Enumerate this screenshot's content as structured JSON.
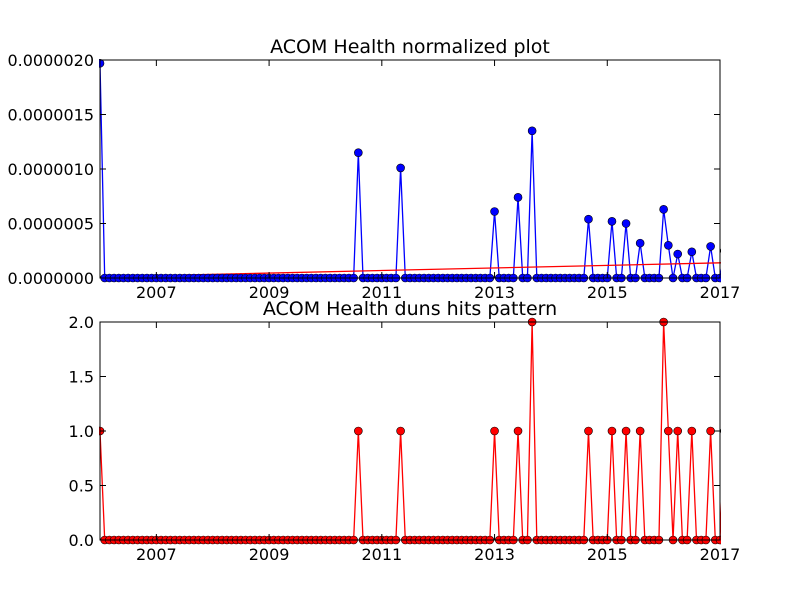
{
  "chart_data": [
    {
      "type": "line",
      "title": "ACOM Health normalized plot",
      "xlabel": "",
      "ylabel": "",
      "xlim": [
        "2006-01",
        "2017-01"
      ],
      "ylim": [
        0,
        2e-06
      ],
      "x_ticks": [
        "2007",
        "2009",
        "2011",
        "2013",
        "2015",
        "2017"
      ],
      "y_ticks": [
        "0.0000000",
        "0.0000005",
        "0.0000010",
        "0.0000015",
        "0.0000020"
      ],
      "grid": false,
      "colors": {
        "series": "#0000ff",
        "trend": "#ff0000"
      },
      "series": [
        {
          "points": [
            [
              "2006-01",
              1.97e-06
            ],
            [
              "2006-02",
              0
            ],
            [
              "2010-08",
              1.15e-06
            ],
            [
              "2011-05",
              1.01e-06
            ],
            [
              "2013-01",
              6.1e-07
            ],
            [
              "2013-06",
              7.4e-07
            ],
            [
              "2013-09",
              1.35e-06
            ],
            [
              "2014-09",
              5.4e-07
            ],
            [
              "2015-02",
              5.2e-07
            ],
            [
              "2015-05",
              5e-07
            ],
            [
              "2015-08",
              3.2e-07
            ],
            [
              "2016-01",
              6.3e-07
            ],
            [
              "2016-02",
              3e-07
            ],
            [
              "2016-04",
              2.2e-07
            ],
            [
              "2016-07",
              2.4e-07
            ],
            [
              "2016-11",
              2.9e-07
            ],
            [
              "2017-02",
              2.5e-07
            ]
          ]
        }
      ],
      "trend_line": [
        [
          "2006-01",
          1e-08
        ],
        [
          "2017-02",
          1.4e-07
        ]
      ]
    },
    {
      "type": "line",
      "title": "ACOM Health duns hits pattern",
      "xlabel": "",
      "ylabel": "",
      "xlim": [
        "2006-01",
        "2017-01"
      ],
      "ylim": [
        0,
        2
      ],
      "x_ticks": [
        "2007",
        "2009",
        "2011",
        "2013",
        "2015",
        "2017"
      ],
      "y_ticks": [
        "0.0",
        "0.5",
        "1.0",
        "1.5",
        "2.0"
      ],
      "grid": false,
      "colors": {
        "series": "#ff0000"
      },
      "series": [
        {
          "points": [
            [
              "2006-01",
              1
            ],
            [
              "2006-02",
              0
            ],
            [
              "2010-08",
              1
            ],
            [
              "2011-05",
              1
            ],
            [
              "2013-01",
              1
            ],
            [
              "2013-06",
              1
            ],
            [
              "2013-09",
              2
            ],
            [
              "2014-09",
              1
            ],
            [
              "2015-02",
              1
            ],
            [
              "2015-05",
              1
            ],
            [
              "2015-08",
              1
            ],
            [
              "2016-01",
              2
            ],
            [
              "2016-02",
              1
            ],
            [
              "2016-04",
              1
            ],
            [
              "2016-07",
              1
            ],
            [
              "2016-11",
              1
            ],
            [
              "2017-02",
              1
            ]
          ]
        }
      ]
    }
  ]
}
